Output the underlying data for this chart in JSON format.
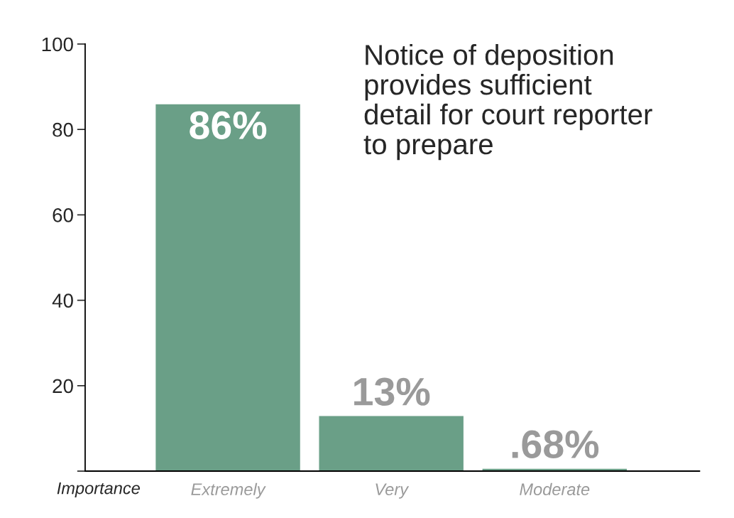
{
  "chart_data": {
    "type": "bar",
    "title": "Notice of deposition\nprovides sufficient\ndetail for court reporter\nto prepare",
    "xlabel": "Importance",
    "categories": [
      "Extremely",
      "Very",
      "Moderate"
    ],
    "values": [
      86,
      13,
      0.68
    ],
    "value_labels": [
      "86%",
      "13%",
      ".68%"
    ],
    "color": "#6a9f87",
    "ylim": [
      0,
      100
    ],
    "yticks": [
      {
        "value": 0,
        "label": null
      },
      20,
      40,
      60,
      80,
      100
    ],
    "grid": false,
    "legend": false
  }
}
